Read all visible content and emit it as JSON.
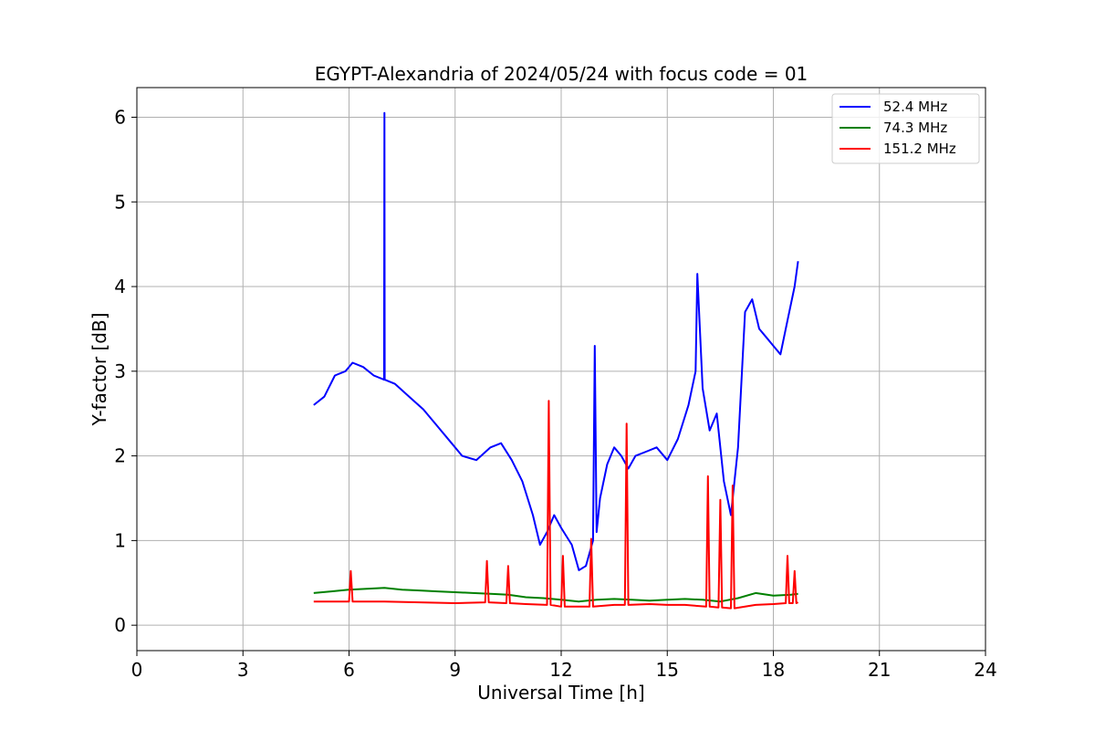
{
  "chart_data": {
    "type": "line",
    "title": "EGYPT-Alexandria of 2024/05/24 with focus code = 01",
    "xlabel": "Universal Time [h]",
    "ylabel": "Y-factor [dB]",
    "xlim": [
      0,
      24
    ],
    "ylim": [
      -0.3,
      6.35
    ],
    "xticks": [
      0,
      3,
      6,
      9,
      12,
      15,
      18,
      21,
      24
    ],
    "yticks": [
      0,
      1,
      2,
      3,
      4,
      5,
      6
    ],
    "grid": true,
    "legend_position": "top-right",
    "series": [
      {
        "name": "52.4 MHz",
        "color": "#0000ff",
        "x": [
          5.0,
          5.3,
          5.6,
          5.9,
          6.1,
          6.4,
          6.7,
          6.99,
          7.0,
          7.01,
          7.3,
          7.7,
          8.1,
          8.5,
          8.9,
          9.2,
          9.6,
          10.0,
          10.3,
          10.6,
          10.9,
          11.2,
          11.4,
          11.6,
          11.8,
          12.0,
          12.3,
          12.5,
          12.7,
          12.9,
          12.95,
          13.0,
          13.1,
          13.3,
          13.5,
          13.7,
          13.9,
          14.1,
          14.4,
          14.7,
          15.0,
          15.3,
          15.6,
          15.8,
          15.85,
          16.0,
          16.2,
          16.4,
          16.6,
          16.8,
          17.0,
          17.2,
          17.4,
          17.6,
          17.8,
          18.0,
          18.2,
          18.4,
          18.6,
          18.7
        ],
        "y": [
          2.6,
          2.7,
          2.95,
          3.0,
          3.1,
          3.05,
          2.95,
          2.9,
          6.05,
          2.9,
          2.85,
          2.7,
          2.55,
          2.35,
          2.15,
          2.0,
          1.95,
          2.1,
          2.15,
          1.95,
          1.7,
          1.3,
          0.95,
          1.1,
          1.3,
          1.15,
          0.95,
          0.65,
          0.7,
          1.0,
          3.3,
          1.1,
          1.5,
          1.9,
          2.1,
          2.0,
          1.85,
          2.0,
          2.05,
          2.1,
          1.95,
          2.2,
          2.6,
          3.0,
          4.15,
          2.8,
          2.3,
          2.5,
          1.7,
          1.3,
          2.1,
          3.7,
          3.85,
          3.5,
          3.4,
          3.3,
          3.2,
          3.6,
          4.0,
          4.3
        ]
      },
      {
        "name": "74.3 MHz",
        "color": "#008000",
        "x": [
          5.0,
          5.5,
          6.0,
          6.5,
          7.0,
          7.5,
          8.0,
          8.5,
          9.0,
          9.5,
          10.0,
          10.5,
          11.0,
          11.5,
          12.0,
          12.5,
          13.0,
          13.5,
          14.0,
          14.5,
          15.0,
          15.5,
          16.0,
          16.5,
          17.0,
          17.5,
          18.0,
          18.5,
          18.7
        ],
        "y": [
          0.38,
          0.4,
          0.42,
          0.43,
          0.44,
          0.42,
          0.41,
          0.4,
          0.39,
          0.38,
          0.37,
          0.36,
          0.33,
          0.32,
          0.3,
          0.28,
          0.3,
          0.31,
          0.3,
          0.29,
          0.3,
          0.31,
          0.3,
          0.28,
          0.32,
          0.38,
          0.35,
          0.36,
          0.37
        ]
      },
      {
        "name": "151.2 MHz",
        "color": "#ff0000",
        "x": [
          5.0,
          6.0,
          6.05,
          6.1,
          7.0,
          8.0,
          9.0,
          9.85,
          9.9,
          9.95,
          10.45,
          10.5,
          10.55,
          11.0,
          11.6,
          11.65,
          11.7,
          12.0,
          12.05,
          12.1,
          12.5,
          12.8,
          12.85,
          12.9,
          13.5,
          13.8,
          13.85,
          13.9,
          14.5,
          15.0,
          15.5,
          16.1,
          16.15,
          16.2,
          16.45,
          16.5,
          16.55,
          16.8,
          16.85,
          16.9,
          17.5,
          18.0,
          18.35,
          18.4,
          18.45,
          18.55,
          18.6,
          18.65,
          18.7
        ],
        "y": [
          0.28,
          0.28,
          0.64,
          0.28,
          0.28,
          0.27,
          0.26,
          0.27,
          0.76,
          0.27,
          0.26,
          0.7,
          0.26,
          0.25,
          0.24,
          2.65,
          0.24,
          0.22,
          0.82,
          0.22,
          0.22,
          0.22,
          1.02,
          0.22,
          0.24,
          0.24,
          2.38,
          0.24,
          0.25,
          0.24,
          0.24,
          0.22,
          1.76,
          0.22,
          0.21,
          1.48,
          0.21,
          0.2,
          1.65,
          0.2,
          0.24,
          0.25,
          0.26,
          0.82,
          0.26,
          0.26,
          0.64,
          0.26,
          0.27
        ]
      }
    ]
  }
}
